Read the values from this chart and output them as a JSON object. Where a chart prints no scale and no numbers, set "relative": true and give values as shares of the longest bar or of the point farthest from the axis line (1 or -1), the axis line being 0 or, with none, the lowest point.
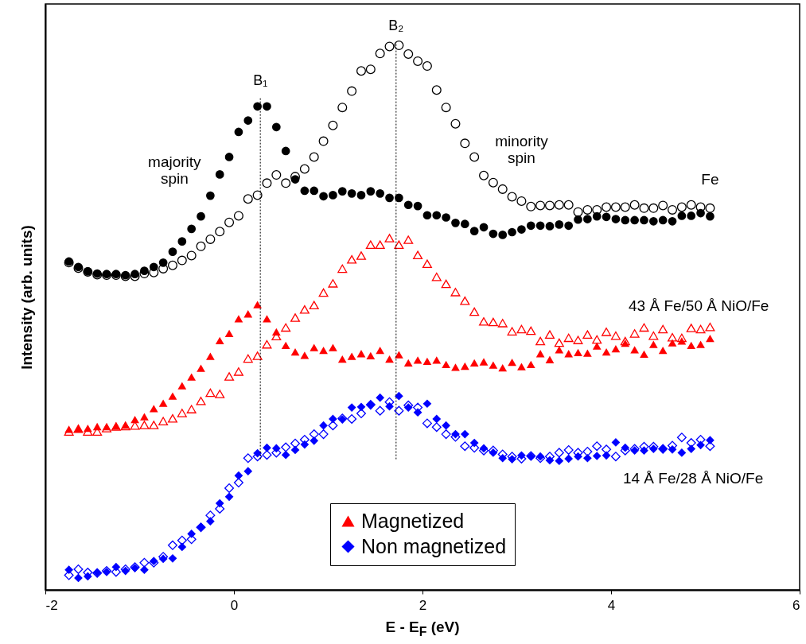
{
  "chart_data": {
    "type": "scatter",
    "relative": true,
    "xlabel": "E - E$_{F}$ (eV)",
    "ylabel": "Intensity (arb. units)",
    "xlim": [
      -2,
      6
    ],
    "xticks": [
      -2,
      0,
      2,
      4,
      6
    ],
    "grid": false,
    "legend": "bottom",
    "x": [
      -1.75,
      -1.65,
      -1.55,
      -1.45,
      -1.35,
      -1.25,
      -1.15,
      -1.05,
      -0.95,
      -0.85,
      -0.75,
      -0.65,
      -0.55,
      -0.45,
      -0.35,
      -0.25,
      -0.15,
      -0.05,
      0.05,
      0.15,
      0.25,
      0.35,
      0.45,
      0.55,
      0.65,
      0.75,
      0.85,
      0.95,
      1.05,
      1.15,
      1.25,
      1.35,
      1.45,
      1.55,
      1.65,
      1.75,
      1.85,
      1.95,
      2.05,
      2.15,
      2.25,
      2.35,
      2.45,
      2.55,
      2.65,
      2.75,
      2.85,
      2.95,
      3.05,
      3.15,
      3.25,
      3.35,
      3.45,
      3.55,
      3.65,
      3.75,
      3.85,
      3.95,
      4.05,
      4.15,
      4.25,
      4.35,
      4.45,
      4.55,
      4.65,
      4.75,
      4.85,
      4.95,
      5.05
    ],
    "series": [
      {
        "color": "#000000",
        "marker": "circle",
        "values": [
          0.601,
          0.591,
          0.584,
          0.579,
          0.578,
          0.578,
          0.576,
          0.576,
          0.581,
          0.583,
          0.59,
          0.596,
          0.605,
          0.614,
          0.631,
          0.644,
          0.658,
          0.675,
          0.687,
          0.718,
          0.725,
          0.747,
          0.762,
          0.747,
          0.759,
          0.773,
          0.795,
          0.824,
          0.853,
          0.886,
          0.916,
          0.953,
          0.956,
          0.985,
          0.998,
          1.0,
          0.984,
          0.971,
          0.962,
          0.918,
          0.886,
          0.856,
          0.82,
          0.795,
          0.761,
          0.748,
          0.736,
          0.722,
          0.714,
          0.704,
          0.706,
          0.706,
          0.707,
          0.707,
          0.694,
          0.698,
          0.698,
          0.703,
          0.703,
          0.703,
          0.707,
          0.701,
          0.701,
          0.706,
          0.698,
          0.703,
          0.707,
          0.703,
          0.701
        ]
      },
      {
        "color": "#000000",
        "marker": "circle",
        "values": [
          0.603,
          0.593,
          0.585,
          0.581,
          0.58,
          0.58,
          0.578,
          0.58,
          0.586,
          0.593,
          0.601,
          0.621,
          0.64,
          0.663,
          0.686,
          0.724,
          0.763,
          0.795,
          0.841,
          0.862,
          0.888,
          0.888,
          0.85,
          0.806,
          0.754,
          0.733,
          0.733,
          0.723,
          0.725,
          0.732,
          0.728,
          0.725,
          0.732,
          0.728,
          0.72,
          0.72,
          0.707,
          0.705,
          0.688,
          0.688,
          0.684,
          0.674,
          0.672,
          0.659,
          0.666,
          0.654,
          0.652,
          0.657,
          0.662,
          0.669,
          0.669,
          0.668,
          0.671,
          0.669,
          0.68,
          0.681,
          0.686,
          0.685,
          0.681,
          0.679,
          0.679,
          0.679,
          0.677,
          0.679,
          0.677,
          0.687,
          0.687,
          0.692,
          0.686
        ]
      },
      {
        "color": "#ff0000",
        "marker": "triangle",
        "values": [
          0.291,
          0.296,
          0.291,
          0.291,
          0.297,
          0.3,
          0.301,
          0.302,
          0.303,
          0.303,
          0.31,
          0.315,
          0.325,
          0.332,
          0.347,
          0.362,
          0.36,
          0.392,
          0.401,
          0.425,
          0.43,
          0.451,
          0.466,
          0.482,
          0.5,
          0.515,
          0.523,
          0.546,
          0.563,
          0.59,
          0.607,
          0.614,
          0.634,
          0.634,
          0.646,
          0.634,
          0.643,
          0.615,
          0.599,
          0.575,
          0.562,
          0.547,
          0.531,
          0.511,
          0.493,
          0.492,
          0.49,
          0.475,
          0.479,
          0.476,
          0.457,
          0.469,
          0.454,
          0.463,
          0.459,
          0.469,
          0.46,
          0.474,
          0.467,
          0.457,
          0.471,
          0.482,
          0.467,
          0.479,
          0.464,
          0.463,
          0.481,
          0.479,
          0.483
        ]
      },
      {
        "name": "Magnetized",
        "color": "#ff0000",
        "marker": "triangle",
        "values": [
          0.295,
          0.296,
          0.297,
          0.3,
          0.3,
          0.301,
          0.303,
          0.313,
          0.318,
          0.333,
          0.343,
          0.356,
          0.375,
          0.391,
          0.407,
          0.429,
          0.458,
          0.471,
          0.498,
          0.507,
          0.524,
          0.498,
          0.474,
          0.449,
          0.437,
          0.431,
          0.445,
          0.44,
          0.445,
          0.424,
          0.429,
          0.434,
          0.43,
          0.44,
          0.424,
          0.432,
          0.417,
          0.422,
          0.42,
          0.422,
          0.414,
          0.409,
          0.411,
          0.417,
          0.419,
          0.413,
          0.408,
          0.418,
          0.41,
          0.414,
          0.434,
          0.423,
          0.441,
          0.434,
          0.436,
          0.435,
          0.448,
          0.437,
          0.443,
          0.453,
          0.441,
          0.433,
          0.451,
          0.44,
          0.454,
          0.457,
          0.449,
          0.451,
          0.462
        ]
      },
      {
        "color": "#0000ff",
        "marker": "diamond",
        "values": [
          0.027,
          0.038,
          0.032,
          0.031,
          0.035,
          0.033,
          0.038,
          0.042,
          0.05,
          0.05,
          0.061,
          0.082,
          0.091,
          0.093,
          0.115,
          0.137,
          0.149,
          0.187,
          0.197,
          0.242,
          0.245,
          0.248,
          0.252,
          0.262,
          0.269,
          0.276,
          0.286,
          0.286,
          0.302,
          0.315,
          0.314,
          0.324,
          0.34,
          0.329,
          0.345,
          0.329,
          0.339,
          0.335,
          0.306,
          0.299,
          0.286,
          0.281,
          0.264,
          0.261,
          0.256,
          0.256,
          0.249,
          0.245,
          0.241,
          0.246,
          0.242,
          0.245,
          0.252,
          0.257,
          0.252,
          0.254,
          0.264,
          0.258,
          0.245,
          0.256,
          0.259,
          0.263,
          0.263,
          0.259,
          0.265,
          0.28,
          0.27,
          0.276,
          0.264
        ]
      },
      {
        "name": "Non magnetized",
        "color": "#0000ff",
        "marker": "diamond",
        "values": [
          0.037,
          0.022,
          0.025,
          0.032,
          0.033,
          0.042,
          0.035,
          0.04,
          0.037,
          0.053,
          0.057,
          0.058,
          0.079,
          0.103,
          0.115,
          0.126,
          0.159,
          0.171,
          0.21,
          0.218,
          0.251,
          0.261,
          0.26,
          0.248,
          0.257,
          0.267,
          0.274,
          0.302,
          0.314,
          0.313,
          0.335,
          0.336,
          0.34,
          0.353,
          0.337,
          0.356,
          0.335,
          0.326,
          0.342,
          0.314,
          0.302,
          0.286,
          0.286,
          0.27,
          0.26,
          0.252,
          0.242,
          0.24,
          0.247,
          0.245,
          0.245,
          0.238,
          0.237,
          0.241,
          0.245,
          0.242,
          0.246,
          0.247,
          0.271,
          0.261,
          0.256,
          0.256,
          0.259,
          0.259,
          0.258,
          0.252,
          0.259,
          0.266,
          0.275
        ]
      }
    ],
    "ref_lines": [
      {
        "axis": "x",
        "value": 0.28,
        "label": "B₁",
        "line_style": "dotted",
        "color": "#000000"
      },
      {
        "axis": "x",
        "value": 1.72,
        "label": "B₂",
        "line_style": "dotted",
        "color": "#000000"
      }
    ],
    "annotations": [
      "majority\nspin",
      "minority\nspin",
      "Fe",
      "43 Å Fe/50 Å NiO/Fe",
      "14 Å Fe/28 Å NiO/Fe"
    ]
  }
}
